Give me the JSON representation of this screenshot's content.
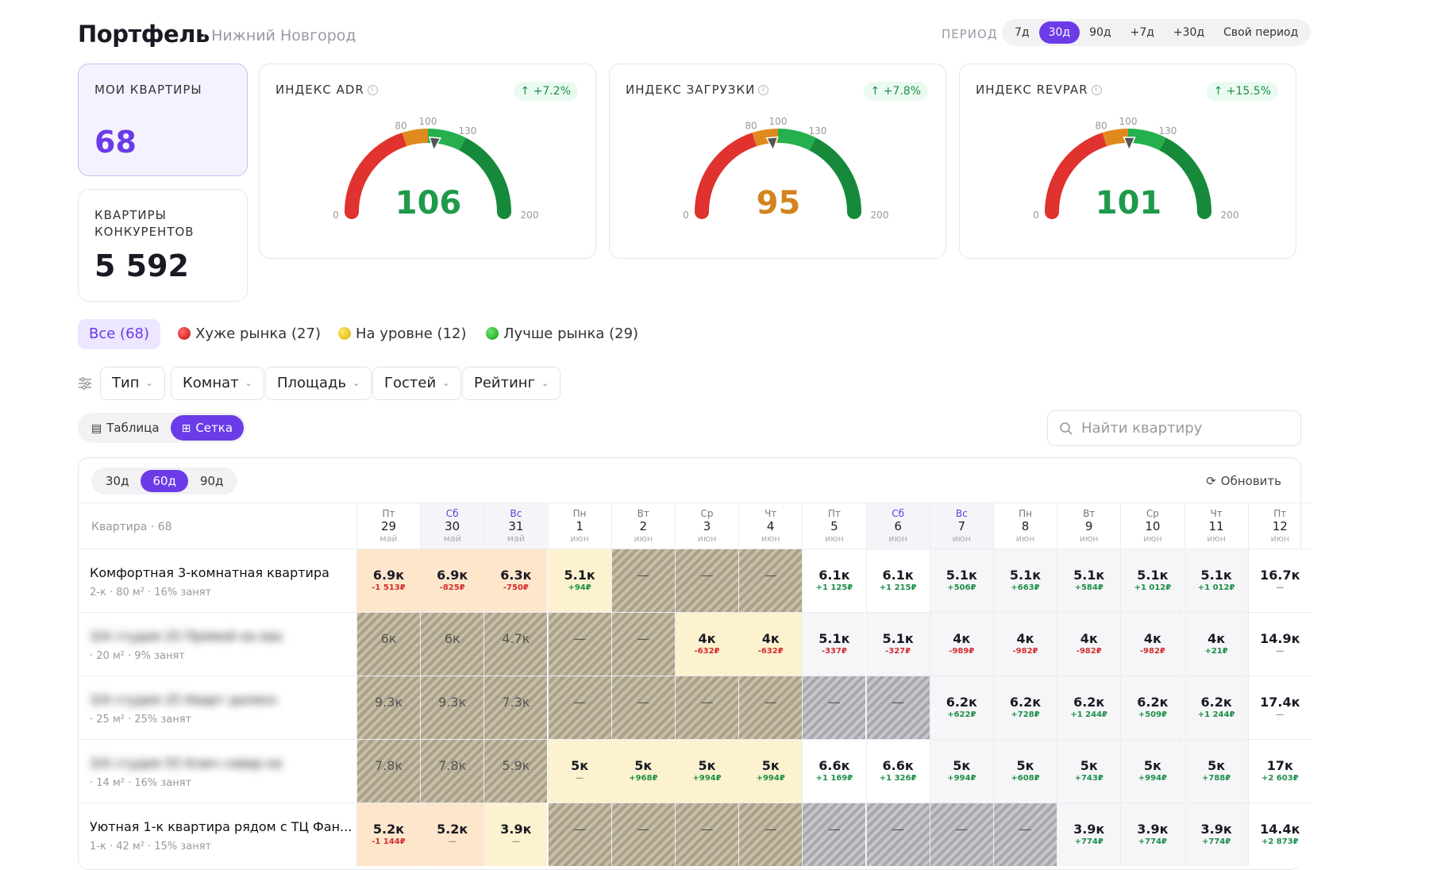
{
  "header": {
    "title": "Портфель",
    "city": "· Нижний Новгород",
    "period_label": "ПЕРИОД",
    "periods": [
      {
        "label": "7д"
      },
      {
        "label": "30д",
        "active": true
      },
      {
        "label": "90д"
      },
      {
        "label": "+7д"
      },
      {
        "label": "+30д"
      },
      {
        "label": "Свой период"
      }
    ]
  },
  "kpis": {
    "my": {
      "label": "МОИ КВАРТИРЫ",
      "value": "68"
    },
    "competitors": {
      "label1": "КВАРТИРЫ",
      "label2": "КОНКУРЕНТОВ",
      "value": "5 592"
    }
  },
  "gauges": [
    {
      "label": "ИНДЕКС ADR",
      "trend": "↑ +7.2%",
      "value": "106",
      "num": 106,
      "color": "#1e9a4a"
    },
    {
      "label": "ИНДЕКС ЗАГРУЗКИ",
      "trend": "↑ +7.8%",
      "value": "95",
      "num": 95,
      "color": "#d4841f"
    },
    {
      "label": "ИНДЕКС REVPAR",
      "trend": "↑ +15.5%",
      "value": "101",
      "num": 101,
      "color": "#1e9a4a"
    }
  ],
  "gauge_ticks": {
    "t0": "0",
    "t80": "80",
    "t100": "100",
    "t130": "130",
    "t200": "200"
  },
  "segments": {
    "all": "Все (68)",
    "worse": "Хуже рынка (27)",
    "level": "На уровне (12)",
    "better": "Лучше рынка (29)"
  },
  "filters": [
    "Тип",
    "Комнат",
    "Площадь",
    "Гостей",
    "Рейтинг"
  ],
  "view": {
    "table": "Таблица",
    "grid": "Сетка"
  },
  "search": {
    "placeholder": "Найти квартиру"
  },
  "grid": {
    "ranges": [
      {
        "label": "30д"
      },
      {
        "label": "60д",
        "active": true
      },
      {
        "label": "90д"
      }
    ],
    "refresh": "Обновить",
    "col_header": "Квартира · 68",
    "days": [
      {
        "dw": "Пт",
        "dn": "29",
        "mo": "май",
        "we": false
      },
      {
        "dw": "Сб",
        "dn": "30",
        "mo": "май",
        "we": true
      },
      {
        "dw": "Вс",
        "dn": "31",
        "mo": "май",
        "we": true
      },
      {
        "dw": "Пн",
        "dn": "1",
        "mo": "июн",
        "we": false
      },
      {
        "dw": "Вт",
        "dn": "2",
        "mo": "июн",
        "we": false
      },
      {
        "dw": "Ср",
        "dn": "3",
        "mo": "июн",
        "we": false
      },
      {
        "dw": "Чт",
        "dn": "4",
        "mo": "июн",
        "we": false
      },
      {
        "dw": "Пт",
        "dn": "5",
        "mo": "июн",
        "we": false
      },
      {
        "dw": "Сб",
        "dn": "6",
        "mo": "июн",
        "we": true
      },
      {
        "dw": "Вс",
        "dn": "7",
        "mo": "июн",
        "we": true
      },
      {
        "dw": "Пн",
        "dn": "8",
        "mo": "июн",
        "we": false
      },
      {
        "dw": "Вт",
        "dn": "9",
        "mo": "июн",
        "we": false
      },
      {
        "dw": "Ср",
        "dn": "10",
        "mo": "июн",
        "we": false
      },
      {
        "dw": "Чт",
        "dn": "11",
        "mo": "июн",
        "we": false
      },
      {
        "dw": "Пт",
        "dn": "12",
        "mo": "июн",
        "we": false
      }
    ],
    "rows": [
      {
        "name": "Комфортная 3-комнатная квартира",
        "meta": "2-к  ·  80 м²  ·  16% занят",
        "blur": false,
        "cells": [
          [
            "peach",
            "6.9к",
            "-1 513₽",
            "neg"
          ],
          [
            "peach",
            "6.9к",
            "-825₽",
            "neg"
          ],
          [
            "peach",
            "6.3к",
            "-750₽",
            "neg"
          ],
          [
            "cream",
            "5.1к",
            "+94₽",
            "pos"
          ],
          [
            "blocked",
            "—",
            "",
            ""
          ],
          [
            "blocked",
            "—",
            "",
            ""
          ],
          [
            "blocked",
            "—",
            "",
            ""
          ],
          [
            "white",
            "6.1к",
            "+1 125₽",
            "pos"
          ],
          [
            "white",
            "6.1к",
            "+1 215₽",
            "pos"
          ],
          [
            "light",
            "5.1к",
            "+506₽",
            "pos"
          ],
          [
            "light",
            "5.1к",
            "+663₽",
            "pos"
          ],
          [
            "light",
            "5.1к",
            "+584₽",
            "pos"
          ],
          [
            "light",
            "5.1к",
            "+1 012₽",
            "pos"
          ],
          [
            "light",
            "5.1к",
            "+1 012₽",
            "pos"
          ],
          [
            "white",
            "16.7к",
            "—",
            "neu"
          ]
        ]
      },
      {
        "name": "3/4 студия 25 Прямой кв ква",
        "meta": "·  20 м²  ·  9% занят",
        "blur": true,
        "cells": [
          [
            "blocked",
            "6к",
            "",
            ""
          ],
          [
            "blocked",
            "6к",
            "",
            ""
          ],
          [
            "blocked",
            "4.7к",
            "",
            ""
          ],
          [
            "blocked",
            "—",
            "",
            ""
          ],
          [
            "blocked",
            "—",
            "",
            ""
          ],
          [
            "cream",
            "4к",
            "-632₽",
            "neg"
          ],
          [
            "cream",
            "4к",
            "-632₽",
            "neg"
          ],
          [
            "light",
            "5.1к",
            "-337₽",
            "neg"
          ],
          [
            "light",
            "5.1к",
            "-327₽",
            "neg"
          ],
          [
            "light",
            "4к",
            "-989₽",
            "neg"
          ],
          [
            "light",
            "4к",
            "-982₽",
            "neg"
          ],
          [
            "light",
            "4к",
            "-982₽",
            "neg"
          ],
          [
            "light",
            "4к",
            "-982₽",
            "neg"
          ],
          [
            "light",
            "4к",
            "+21₽",
            "pos"
          ],
          [
            "white",
            "14.9к",
            "—",
            "neu"
          ]
        ]
      },
      {
        "name": "3/4 студия 25 Кварт далеко",
        "meta": "·  25 м²  ·  25% занят",
        "blur": true,
        "cells": [
          [
            "blocked",
            "9.3к",
            "",
            ""
          ],
          [
            "blocked",
            "9.3к",
            "",
            ""
          ],
          [
            "blocked",
            "7.3к",
            "",
            ""
          ],
          [
            "blocked",
            "—",
            "",
            ""
          ],
          [
            "blocked",
            "—",
            "",
            ""
          ],
          [
            "blocked",
            "—",
            "",
            ""
          ],
          [
            "blocked",
            "—",
            "",
            ""
          ],
          [
            "gray",
            "—",
            "",
            ""
          ],
          [
            "gray",
            "—",
            "",
            ""
          ],
          [
            "light",
            "6.2к",
            "+622₽",
            "pos"
          ],
          [
            "light",
            "6.2к",
            "+728₽",
            "pos"
          ],
          [
            "light",
            "6.2к",
            "+1 244₽",
            "pos"
          ],
          [
            "light",
            "6.2к",
            "+509₽",
            "pos"
          ],
          [
            "light",
            "6.2к",
            "+1 244₽",
            "pos"
          ],
          [
            "white",
            "17.4к",
            "—",
            "neu"
          ]
        ]
      },
      {
        "name": "3/4 студия 55 Ключ север кв",
        "meta": "·  14 м²  ·  16% занят",
        "blur": true,
        "cells": [
          [
            "blocked",
            "7.8к",
            "",
            ""
          ],
          [
            "blocked",
            "7.8к",
            "",
            ""
          ],
          [
            "blocked",
            "5.9к",
            "",
            ""
          ],
          [
            "cream",
            "5к",
            "—",
            "neu"
          ],
          [
            "cream",
            "5к",
            "+968₽",
            "pos"
          ],
          [
            "cream",
            "5к",
            "+994₽",
            "pos"
          ],
          [
            "cream",
            "5к",
            "+994₽",
            "pos"
          ],
          [
            "white",
            "6.6к",
            "+1 169₽",
            "pos"
          ],
          [
            "white",
            "6.6к",
            "+1 326₽",
            "pos"
          ],
          [
            "light",
            "5к",
            "+994₽",
            "pos"
          ],
          [
            "light",
            "5к",
            "+608₽",
            "pos"
          ],
          [
            "light",
            "5к",
            "+743₽",
            "pos"
          ],
          [
            "light",
            "5к",
            "+994₽",
            "pos"
          ],
          [
            "light",
            "5к",
            "+788₽",
            "pos"
          ],
          [
            "white",
            "17к",
            "+2 603₽",
            "pos"
          ]
        ]
      },
      {
        "name": "Уютная 1-к квартира рядом с ТЦ Фан...",
        "meta": "1-к  ·  42 м²  ·  15% занят",
        "blur": false,
        "cells": [
          [
            "peach",
            "5.2к",
            "-1 144₽",
            "neg"
          ],
          [
            "peach",
            "5.2к",
            "—",
            "neu"
          ],
          [
            "cream",
            "3.9к",
            "—",
            "neu"
          ],
          [
            "blocked",
            "—",
            "",
            ""
          ],
          [
            "blocked",
            "—",
            "",
            ""
          ],
          [
            "blocked",
            "—",
            "",
            ""
          ],
          [
            "blocked",
            "—",
            "",
            ""
          ],
          [
            "gray",
            "—",
            "",
            ""
          ],
          [
            "gray",
            "—",
            "",
            ""
          ],
          [
            "gray",
            "—",
            "",
            ""
          ],
          [
            "gray",
            "—",
            "",
            ""
          ],
          [
            "light",
            "3.9к",
            "+774₽",
            "pos"
          ],
          [
            "light",
            "3.9к",
            "+774₽",
            "pos"
          ],
          [
            "light",
            "3.9к",
            "+774₽",
            "pos"
          ],
          [
            "white",
            "14.4к",
            "+2 873₽",
            "pos"
          ]
        ]
      }
    ]
  },
  "colors": {
    "accent": "#6b3be8",
    "positive": "#1e8e4a",
    "negative": "#d32f2f"
  }
}
